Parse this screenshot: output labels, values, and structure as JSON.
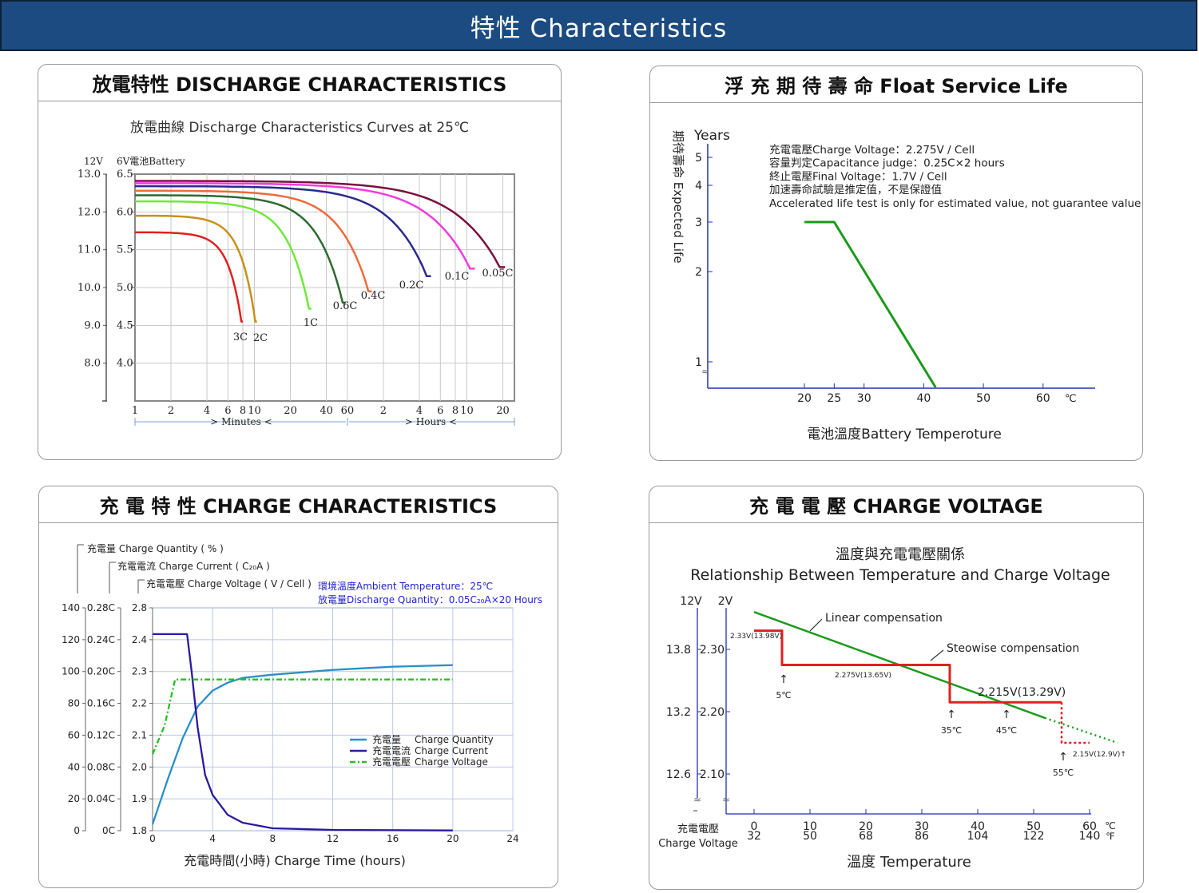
{
  "banner": {
    "title": "特性  Characteristics"
  },
  "colors": {
    "banner": "#1b4b80",
    "green": "#1b9a1b",
    "red": "#e02020",
    "navy": "#2a1aa0",
    "teal": "#2a8fc8",
    "lime": "#22c022",
    "blue_text": "#2222cc"
  },
  "discharge": {
    "panel_title": "放電特性 DISCHARGE CHARACTERISTICS",
    "chart_data": {
      "type": "line",
      "title": "放電曲線 Discharge Characteristics Curves at 25℃",
      "ylabel_12v": "12V",
      "ylabel_6v": "6V電池Battery",
      "y_ticks_12v": [
        "13.0",
        "12.0",
        "11.0",
        "10.0",
        "9.0",
        "8.0"
      ],
      "y_ticks_6v": [
        "6.5",
        "6.0",
        "5.5",
        "5.0",
        "4.5",
        "4.0"
      ],
      "y_tick_values": [
        6.5,
        6.0,
        5.5,
        5.0,
        4.5,
        4.0
      ],
      "ylim": [
        3.5,
        6.5
      ],
      "x_ticks": [
        {
          "v": 1,
          "l": "1"
        },
        {
          "v": 2,
          "l": "2"
        },
        {
          "v": 4,
          "l": "4"
        },
        {
          "v": 6,
          "l": "6"
        },
        {
          "v": 8,
          "l": "8"
        },
        {
          "v": 10,
          "l": "10"
        },
        {
          "v": 20,
          "l": "20"
        },
        {
          "v": 40,
          "l": "40"
        },
        {
          "v": 60,
          "l": "60"
        },
        {
          "v": 120,
          "l": "2"
        },
        {
          "v": 240,
          "l": "4"
        },
        {
          "v": 360,
          "l": "6"
        },
        {
          "v": 480,
          "l": "8"
        },
        {
          "v": 600,
          "l": "10"
        },
        {
          "v": 1200,
          "l": "20"
        }
      ],
      "xlim_minutes": [
        1,
        1500
      ],
      "x_scale": "log",
      "x_unit_minutes": "Minutes",
      "x_unit_hours": "Hours",
      "series": [
        {
          "name": "3C",
          "color": "#e02020",
          "end_min": 8,
          "v_start": 5.73,
          "v_end": 4.55,
          "lx": 300,
          "ly": 425
        },
        {
          "name": "2C",
          "color": "#c8901a",
          "end_min": 10.5,
          "v_start": 5.95,
          "v_end": 4.55,
          "lx": 325,
          "ly": 426
        },
        {
          "name": "1C",
          "color": "#6ee83a",
          "end_min": 30,
          "v_start": 6.14,
          "v_end": 4.72,
          "lx": 388,
          "ly": 407
        },
        {
          "name": "0.6C",
          "color": "#2e6a30",
          "end_min": 58,
          "v_start": 6.22,
          "v_end": 4.8,
          "lx": 431,
          "ly": 386
        },
        {
          "name": "0.4C",
          "color": "#f06a3a",
          "end_min": 96,
          "v_start": 6.28,
          "v_end": 4.95,
          "lx": 466,
          "ly": 373
        },
        {
          "name": "0.2C",
          "color": "#2a2a90",
          "end_min": 300,
          "v_start": 6.34,
          "v_end": 5.15,
          "lx": 514,
          "ly": 360
        },
        {
          "name": "0.1C",
          "color": "#f03cdc",
          "end_min": 700,
          "v_start": 6.38,
          "v_end": 5.25,
          "lx": 571,
          "ly": 349
        },
        {
          "name": "0.05C",
          "color": "#7a1040",
          "end_min": 1250,
          "v_start": 6.41,
          "v_end": 5.27,
          "lx": 622,
          "ly": 345
        }
      ]
    }
  },
  "float": {
    "panel_title": "浮 充 期 待 壽 命 Float Service Life",
    "chart_data": {
      "type": "line",
      "ylabel_top": "Years",
      "ylabel": "期待壽命 Expected Life",
      "xlabel": "電池溫度Battery Temperoture",
      "y_ticks": [
        {
          "v": 1,
          "l": "1"
        },
        {
          "v": 2,
          "l": "2"
        },
        {
          "v": 3,
          "l": "3"
        },
        {
          "v": 4,
          "l": "4"
        },
        {
          "v": 5,
          "l": "5"
        }
      ],
      "x_ticks": [
        {
          "v": 20,
          "l": "20"
        },
        {
          "v": 25,
          "l": "25"
        },
        {
          "v": 30,
          "l": "30"
        },
        {
          "v": 40,
          "l": "40"
        },
        {
          "v": 50,
          "l": "50"
        },
        {
          "v": 60,
          "l": "60"
        }
      ],
      "x_unit": "℃",
      "notes": [
        "充電電壓Charge Voltage：2.275V / Cell",
        "容量判定Capacitance judge：0.25C×2 hours",
        "終止電壓Final Voltage：1.7V / Cell",
        "加速壽命試驗是推定值，不是保證值",
        "Accelerated life test is only for estimated value, not guarantee value"
      ],
      "series": [
        {
          "color": "#1b9a1b",
          "points": [
            [
              20,
              3
            ],
            [
              25,
              3
            ],
            [
              42,
              0.6
            ]
          ]
        }
      ]
    }
  },
  "charge": {
    "panel_title": "充 電 特 性  CHARGE CHARACTERISTICS",
    "chart_data": {
      "type": "line",
      "axis_label_qty": "充電量  Charge Quantity ( % )",
      "axis_label_cur": "充電電流  Charge Current ( C₂₀A )",
      "axis_label_volt": "充電電壓  Charge Voltage ( V / Cell )",
      "note1": "環境溫度Ambient Temperature：25℃",
      "note2": "放電量Discharge Quantity：0.05C₂₀A×20 Hours",
      "qty_ticks": [
        "140",
        "120",
        "100",
        "80",
        "60",
        "40",
        "20",
        "0"
      ],
      "cur_ticks": [
        "0.28C",
        "0.24C",
        "0.20C",
        "0.16C",
        "0.12C",
        "0.08C",
        "0.04C",
        "0C"
      ],
      "volt_ticks": [
        "2.8",
        "2.4",
        "2.3",
        "2.2",
        "2.1",
        "2.0",
        "1.9",
        "1.8"
      ],
      "x_ticks": [
        {
          "v": 0,
          "l": "0"
        },
        {
          "v": 4,
          "l": "4"
        },
        {
          "v": 8,
          "l": "8"
        },
        {
          "v": 12,
          "l": "12"
        },
        {
          "v": 16,
          "l": "16"
        },
        {
          "v": 20,
          "l": "20"
        },
        {
          "v": 24,
          "l": "24"
        }
      ],
      "xlabel": "充電時間(小時)  Charge Time (hours)",
      "legend": [
        {
          "cn": "充電量",
          "en": "Charge Quantity",
          "color": "#2a8fc8",
          "dash": ""
        },
        {
          "cn": "充電電流",
          "en": "Charge Current",
          "color": "#2a1aa0",
          "dash": ""
        },
        {
          "cn": "充電電壓",
          "en": "Charge Voltage",
          "color": "#22c022",
          "dash": "7,3,2,3"
        }
      ],
      "series": [
        {
          "name": "Charge Quantity",
          "unit": "%",
          "color": "#2a8fc8",
          "points": [
            [
              0,
              4
            ],
            [
              1,
              32
            ],
            [
              2,
              58
            ],
            [
              3,
              78
            ],
            [
              4,
              88
            ],
            [
              5,
              93
            ],
            [
              6,
              96
            ],
            [
              8,
              98
            ],
            [
              12,
              101
            ],
            [
              16,
              103
            ],
            [
              20,
              104
            ]
          ]
        },
        {
          "name": "Charge Current",
          "unit": "C20A",
          "color": "#2a1aa0",
          "points": [
            [
              0,
              0.247
            ],
            [
              2.3,
              0.247
            ],
            [
              2.6,
              0.2
            ],
            [
              3,
              0.13
            ],
            [
              3.5,
              0.07
            ],
            [
              4,
              0.045
            ],
            [
              5,
              0.02
            ],
            [
              6,
              0.01
            ],
            [
              8,
              0.003
            ],
            [
              12,
              0.001
            ],
            [
              20,
              0.0003
            ]
          ]
        },
        {
          "name": "Charge Voltage",
          "unit": "V/Cell",
          "color": "#22c022",
          "points": [
            [
              0,
              2.04
            ],
            [
              0.8,
              2.13
            ],
            [
              1.5,
              2.275
            ],
            [
              20,
              2.275
            ]
          ]
        }
      ]
    }
  },
  "cvolt": {
    "panel_title": "充 電 電 壓  CHARGE VOLTAGE",
    "chart_data": {
      "type": "line",
      "title_cn": "溫度與充電電壓關係",
      "title_en": "Relationship Between Temperature and Charge Voltage",
      "ylabel_12v": "12V",
      "ylabel_2v": "2V",
      "y_ticks": [
        {
          "v": 2.3,
          "l12": "13.8",
          "l2": "2.30"
        },
        {
          "v": 2.2,
          "l12": "13.2",
          "l2": "2.20"
        },
        {
          "v": 2.1,
          "l12": "12.6",
          "l2": "2.10"
        }
      ],
      "x_ticks": [
        {
          "v": 0,
          "c": "0",
          "f": "32"
        },
        {
          "v": 10,
          "c": "10",
          "f": "50"
        },
        {
          "v": 20,
          "c": "20",
          "f": "68"
        },
        {
          "v": 30,
          "c": "30",
          "f": "86"
        },
        {
          "v": 40,
          "c": "40",
          "f": "104"
        },
        {
          "v": 50,
          "c": "50",
          "f": "122"
        },
        {
          "v": 60,
          "c": "60",
          "f": "140"
        }
      ],
      "unit_c": "℃",
      "unit_f": "℉",
      "xlabel": "溫度  Temperature",
      "ylabel_cn": "充電電壓",
      "ylabel_en": "Charge Voltage",
      "linear_label": "Linear compensation",
      "step_label": "Steowise compensation",
      "step_values": [
        {
          "text": "2.33V(13.98V)",
          "x": 2,
          "y": 2.325
        },
        {
          "text": "2.275V(13.65V)",
          "x": 22,
          "y": 2.255
        },
        {
          "text": "2.215V(13.29V)",
          "x": 47,
          "y": 2.23
        },
        {
          "text": "2.15V(12.9V)↑",
          "x": 61,
          "y": 2.135
        }
      ],
      "temps": [
        {
          "text": "5℃",
          "x": 5
        },
        {
          "text": "35℃",
          "x": 35
        },
        {
          "text": "45℃",
          "x": 45
        },
        {
          "text": "55℃",
          "x": 55
        }
      ],
      "linear": {
        "color": "#1b9a1b",
        "points": [
          [
            0,
            2.36
          ],
          [
            52,
            2.19
          ]
        ],
        "dotted": [
          [
            52,
            2.19
          ],
          [
            65,
            2.15
          ]
        ]
      },
      "step": {
        "color": "#e02020",
        "points": [
          [
            0,
            2.33
          ],
          [
            5,
            2.33
          ],
          [
            5,
            2.275
          ],
          [
            35,
            2.275
          ],
          [
            35,
            2.215
          ],
          [
            55,
            2.215
          ]
        ],
        "dotted": [
          [
            55,
            2.215
          ],
          [
            55,
            2.15
          ],
          [
            60,
            2.15
          ]
        ]
      }
    }
  }
}
